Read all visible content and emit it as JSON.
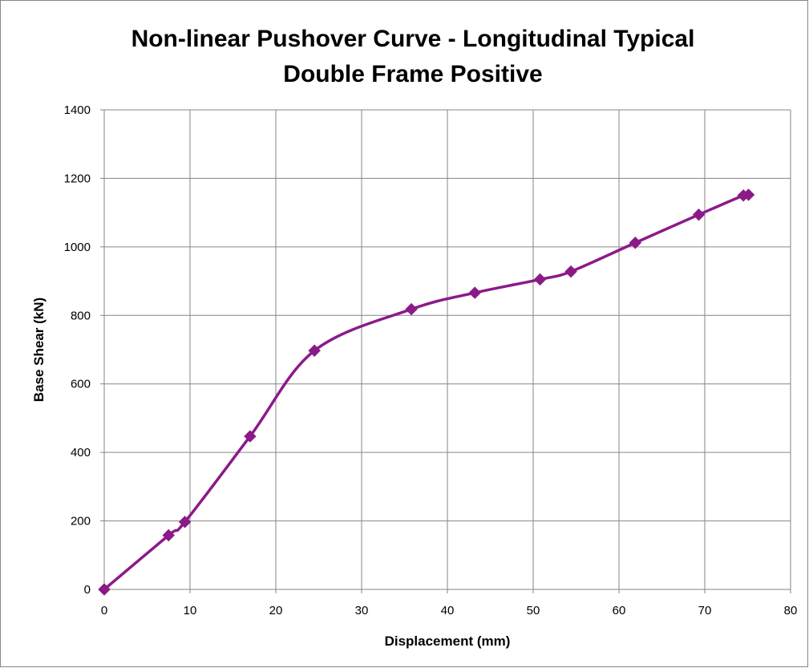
{
  "chart_data": {
    "type": "line",
    "title_lines": [
      "Non-linear Pushover Curve - Longitudinal Typical",
      "Double Frame Positive"
    ],
    "xlabel": "Displacement (mm)",
    "ylabel": "Base Shear (kN)",
    "xlim": [
      0,
      80
    ],
    "ylim": [
      0,
      1400
    ],
    "x_ticks": [
      0,
      10,
      20,
      30,
      40,
      50,
      60,
      70,
      80
    ],
    "y_ticks": [
      0,
      200,
      400,
      600,
      800,
      1000,
      1200,
      1400
    ],
    "grid": true,
    "legend": "none",
    "marker": "diamond",
    "series": [
      {
        "color": "#8B1A89",
        "x": [
          0,
          7.5,
          9.4,
          17,
          24.5,
          35.8,
          43.2,
          50.8,
          54.4,
          61.9,
          69.3,
          74.5,
          75.1
        ],
        "y": [
          0,
          158,
          197,
          447,
          697,
          818,
          866,
          905,
          928,
          1012,
          1094,
          1150,
          1152
        ]
      }
    ]
  }
}
